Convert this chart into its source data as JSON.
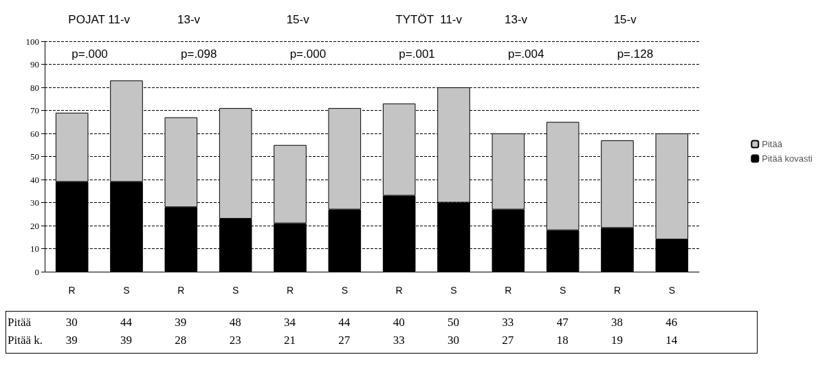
{
  "chart_data": {
    "type": "bar",
    "stacked": true,
    "categories": [
      "R",
      "S",
      "R",
      "S",
      "R",
      "S",
      "R",
      "S",
      "R",
      "S",
      "R",
      "S"
    ],
    "series": [
      {
        "name": "Pitää kovasti",
        "color": "#000000",
        "values": [
          39,
          39,
          28,
          23,
          21,
          27,
          33,
          30,
          27,
          18,
          19,
          14
        ],
        "value_labels": [
          "39",
          "39",
          "28",
          "23",
          "21",
          "27",
          "33",
          "30",
          "27",
          "18",
          "19",
          "14"
        ]
      },
      {
        "name": "Pitää",
        "color": "#c4c4c4",
        "values": [
          30,
          44,
          39,
          48,
          34,
          44,
          40,
          50,
          33,
          47,
          38,
          46
        ],
        "value_labels": [
          "30",
          "44",
          "39",
          "48",
          "34",
          "44",
          "40",
          "50",
          "33",
          "47",
          "38",
          "46"
        ]
      }
    ],
    "ylim": [
      0,
      100
    ],
    "yticks": [
      0,
      10,
      20,
      30,
      40,
      50,
      60,
      70,
      80,
      90,
      100
    ],
    "grid": "y",
    "legend": "right",
    "annotations": [
      "POJAT 11-v",
      "13-v",
      "15-v",
      "TYTÖT  11-v",
      "13-v",
      "15-v",
      "p=.000",
      "p=.098",
      "p=.000",
      "p=.001",
      "p=.004",
      "p=.128",
      "Pitää k."
    ]
  }
}
